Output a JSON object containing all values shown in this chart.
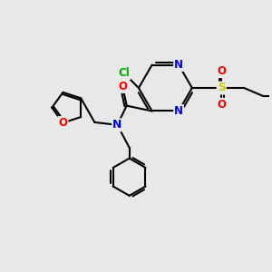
{
  "bg_color": "#e8e8e8",
  "atom_colors": {
    "N": "#0000ee",
    "O": "#ff0000",
    "S": "#cccc00",
    "Cl": "#00aa00"
  },
  "bond_color": "#000000",
  "figsize": [
    3.0,
    3.0
  ],
  "dpi": 100
}
